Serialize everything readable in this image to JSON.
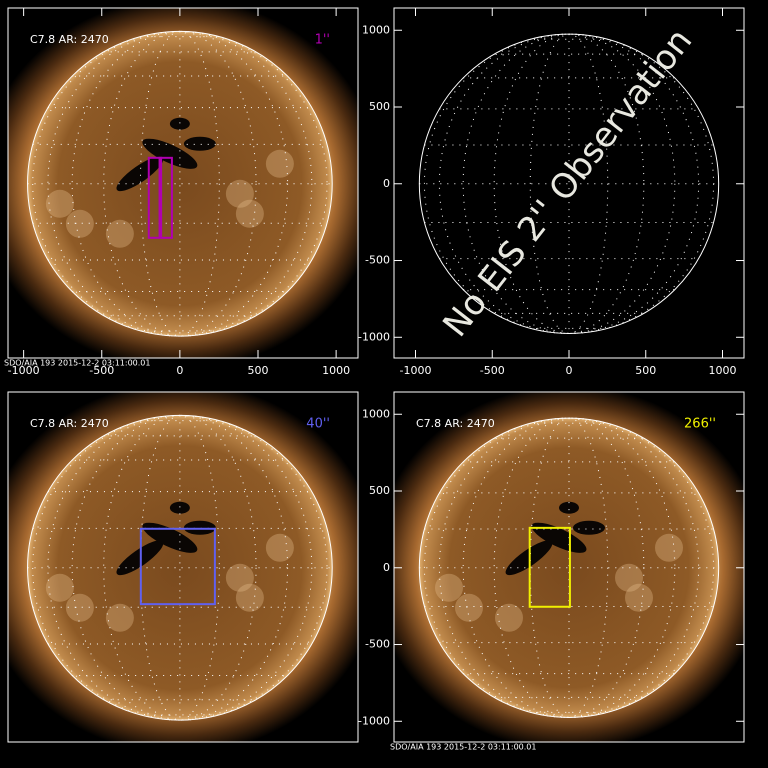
{
  "panels": [
    {
      "title": "C7.8 AR: 2470",
      "scale": "1''",
      "scale_color": "#b000b0",
      "image": true,
      "footer": "SDO/AIA 193 2015-12-2 03:11:00.01",
      "xlim": [
        -1100,
        1140
      ],
      "ylim": [
        -1135,
        1145
      ],
      "xticks": [
        -1000,
        -500,
        0,
        500,
        1000
      ],
      "yticks": [],
      "boxes": [
        {
          "color": "#b000b0",
          "x": [
            -199,
            -120
          ],
          "y": [
            -352,
            169
          ]
        },
        {
          "color": "#b000b0",
          "x": [
            -130,
            -51
          ],
          "y": [
            -352,
            169
          ]
        }
      ]
    },
    {
      "note_text": "No EIS 2'' Observation",
      "image": false,
      "xlim": [
        -1140,
        1140
      ],
      "ylim": [
        -1135,
        1145
      ],
      "xticks": [
        -1000,
        -500,
        0,
        500,
        1000
      ],
      "yticks": [
        -1000,
        -500,
        0,
        500,
        1000
      ],
      "boxes": []
    },
    {
      "title": "C7.8 AR: 2470",
      "scale": "40''",
      "scale_color": "#6060f0",
      "image": true,
      "xlim": [
        -1100,
        1140
      ],
      "ylim": [
        -1135,
        1145
      ],
      "xticks": [],
      "yticks": [],
      "boxes": [
        {
          "color": "#6060f0",
          "x": [
            -250,
            224
          ],
          "y": [
            -237,
            254
          ]
        }
      ]
    },
    {
      "title": "C7.8 AR: 2470",
      "scale": "266''",
      "scale_color": "#f0f000",
      "image": true,
      "footer": "SDO/AIA 193 2015-12-2 03:11:00.01",
      "xlim": [
        -1140,
        1140
      ],
      "ylim": [
        -1135,
        1145
      ],
      "xticks": [],
      "yticks": [
        -1000,
        -500,
        0,
        500,
        1000
      ],
      "boxes": [
        {
          "color": "#f0f000",
          "x": [
            -256,
            6
          ],
          "y": [
            -254,
            260
          ]
        }
      ]
    }
  ]
}
